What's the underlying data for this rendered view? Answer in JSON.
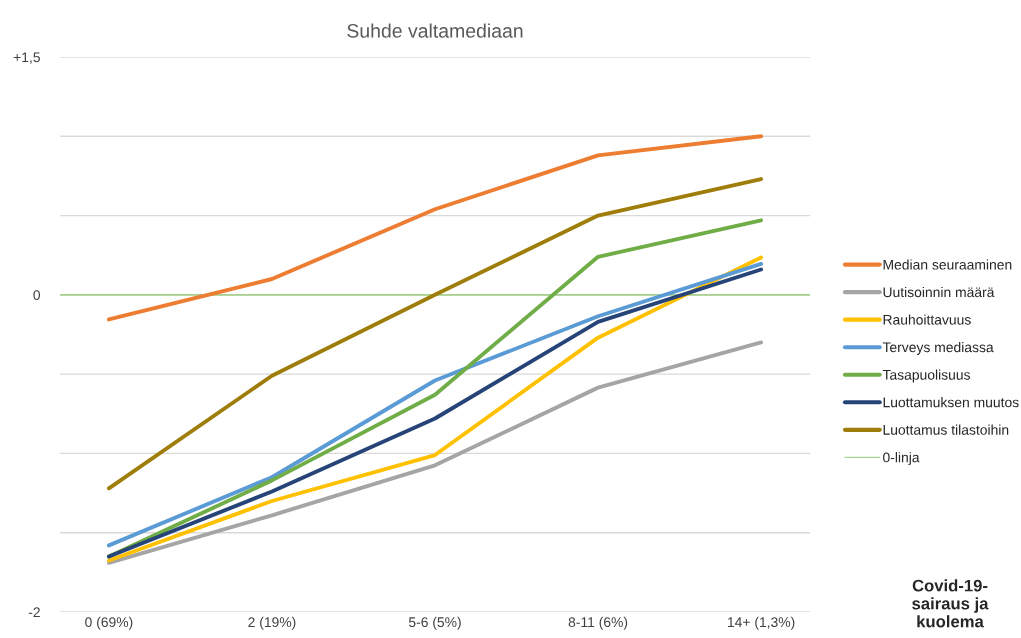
{
  "chart_data": {
    "type": "line",
    "title": "Suhde valtamediaan",
    "annotations": [
      "Covid-19-\nsairaus ja\nkuolema"
    ],
    "categories": [
      "0 (69%)",
      "2 (19%)",
      "5-6 (5%)",
      "8-11 (6%)",
      "14+ (1,3%)"
    ],
    "series": [
      {
        "name": "Median seuraaminen",
        "color": "#ed7d31",
        "values": [
          -0.155,
          0.1,
          0.54,
          0.88,
          1.0
        ]
      },
      {
        "name": "Uutisoinnin määrä",
        "color": "#a5a5a5",
        "values": [
          -1.69,
          -1.39,
          -1.075,
          -0.585,
          -0.3
        ]
      },
      {
        "name": "Rauhoittavuus",
        "color": "#ffc000",
        "values": [
          -1.675,
          -1.3,
          -1.01,
          -0.27,
          0.235
        ]
      },
      {
        "name": "Terveys mediassa",
        "color": "#5b9bd5",
        "values": [
          -1.58,
          -1.15,
          -0.54,
          -0.135,
          0.195
        ]
      },
      {
        "name": "Tasapuolisuus",
        "color": "#70ad47",
        "values": [
          -1.65,
          -1.17,
          -0.63,
          0.24,
          0.47
        ]
      },
      {
        "name": "Luottamuksen muutos",
        "color": "#264478",
        "values": [
          -1.65,
          -1.24,
          -0.78,
          -0.17,
          0.16
        ]
      },
      {
        "name": "Luottamus tilastoihin",
        "color": "#9e7d0a",
        "values": [
          -1.22,
          -0.51,
          0.0,
          0.5,
          0.73
        ]
      }
    ],
    "ref_lines": [
      {
        "axis": "y",
        "value": 0,
        "label": "0-linja",
        "color": "#a9d18e"
      }
    ],
    "ylim": [
      -2,
      1.5
    ],
    "yticks": [
      {
        "value": -2,
        "label": "-2"
      },
      {
        "value": -1.5,
        "label": null
      },
      {
        "value": -1,
        "label": null
      },
      {
        "value": -0.5,
        "label": null
      },
      {
        "value": 0,
        "label": "0"
      },
      {
        "value": 0.5,
        "label": null
      },
      {
        "value": 1,
        "label": null
      },
      {
        "value": 1.5,
        "label": "+1,5"
      }
    ],
    "grid": "y",
    "legend": "right",
    "marker": "none",
    "line_style": "solid"
  }
}
